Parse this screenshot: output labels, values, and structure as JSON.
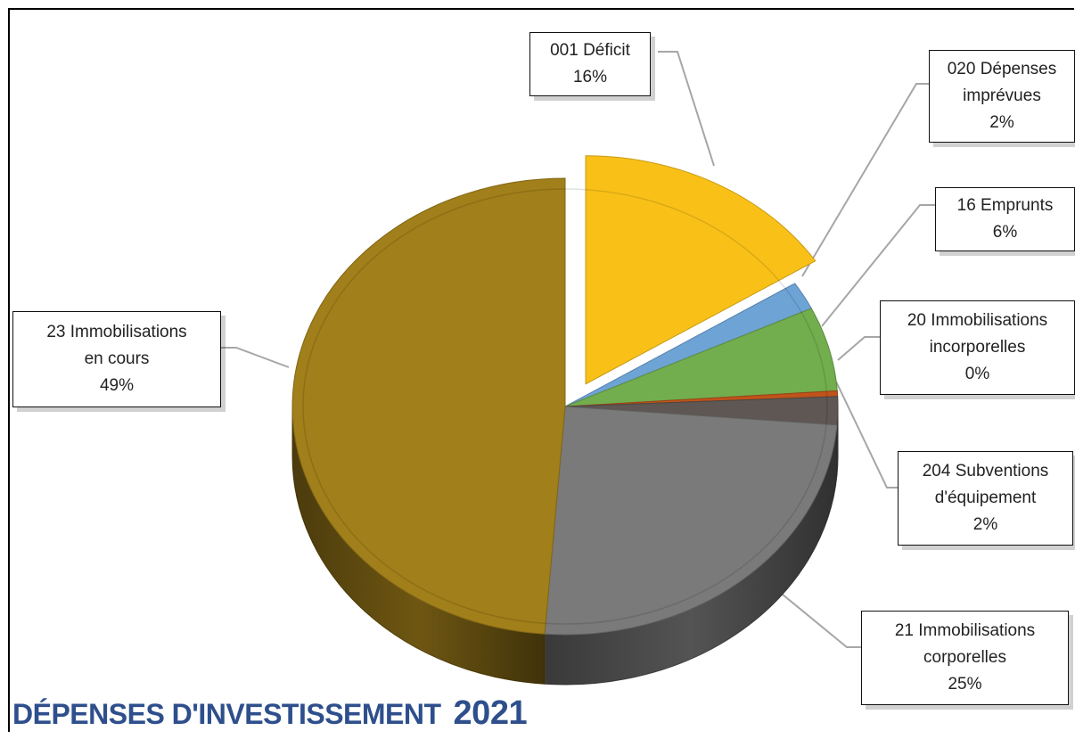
{
  "title_text": "DÉPENSES D'INVESTISSEMENT",
  "title_year": "2021",
  "chart_data": {
    "type": "pie",
    "title": "DÉPENSES D'INVESTISSEMENT 2021",
    "legend": "none",
    "slices": [
      {
        "code": "001",
        "name": "Déficit",
        "label_lines": [
          "001 Déficit"
        ],
        "value": 16,
        "pct_label": "16%",
        "color": "#f9c118",
        "exploded": true
      },
      {
        "code": "020",
        "name": "Dépenses imprévues",
        "label_lines": [
          "020 Dépenses",
          "imprévues"
        ],
        "value": 2,
        "pct_label": "2%",
        "color": "#6ea3d6",
        "exploded": false
      },
      {
        "code": "16",
        "name": "Emprunts",
        "label_lines": [
          "16  Emprunts"
        ],
        "value": 6,
        "pct_label": "6%",
        "color": "#72ad4e",
        "exploded": false
      },
      {
        "code": "20",
        "name": "Immobilisations incorporelles",
        "label_lines": [
          "20  Immobilisations",
          "incorporelles"
        ],
        "value": 0.4,
        "pct_label": "0%",
        "color": "#c0531a",
        "exploded": false
      },
      {
        "code": "204",
        "name": "Subventions d'équipement",
        "label_lines": [
          "204 Subventions",
          "d'équipement"
        ],
        "value": 2,
        "pct_label": "2%",
        "color": "#5e5753",
        "exploded": false
      },
      {
        "code": "21",
        "name": "Immobilisations corporelles",
        "label_lines": [
          "21  Immobilisations",
          "corporelles"
        ],
        "value": 25,
        "pct_label": "25%",
        "color": "#7a7a7a",
        "exploded": false
      },
      {
        "code": "23",
        "name": "Immobilisations en cours",
        "label_lines": [
          "23  Immobilisations",
          "en cours"
        ],
        "value": 49,
        "pct_label": "49%",
        "color": "#a17f1a",
        "exploded": false
      }
    ]
  }
}
